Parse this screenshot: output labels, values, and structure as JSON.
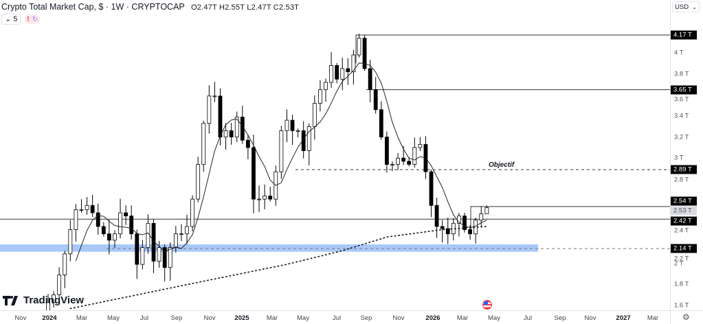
{
  "header": {
    "title": "Crypto Total Market Cap, $ · 1W · CRYPTOCAP",
    "ohlc": "O2.47T H2.55T L2.47T C2.53T",
    "indicator_count": "5",
    "collapse_chevron": "⌄",
    "warning": "!",
    "sync": "↻"
  },
  "currency": {
    "label": "USD",
    "chevron": "⌄"
  },
  "annotations": {
    "objectif": "Objectif"
  },
  "branding": {
    "logo_text": "TradingView"
  },
  "colors": {
    "zone": "#a9c8f8",
    "up": "#ffffff",
    "down": "#000000",
    "tag_bg": "#000000"
  },
  "chart_data": {
    "type": "candlestick",
    "symbol": "CRYPTOCAP:TOTAL",
    "interval": "1W",
    "closes": [
      1.63,
      1.7,
      1.89,
      2.09,
      2.32,
      2.51,
      2.51,
      2.55,
      2.48,
      2.35,
      2.28,
      2.22,
      2.28,
      2.48,
      2.45,
      2.28,
      1.99,
      2.15,
      2.38,
      2.02,
      2.15,
      1.96,
      2.15,
      2.28,
      2.28,
      2.35,
      2.61,
      2.94,
      3.33,
      3.59,
      3.59,
      3.2,
      3.26,
      3.2,
      3.39,
      3.17,
      3.1,
      2.61,
      2.61,
      2.64,
      2.61,
      2.87,
      3.26,
      3.36,
      3.26,
      3.26,
      3.07,
      3.3,
      3.52,
      3.65,
      3.72,
      3.88,
      3.75,
      3.85,
      3.82,
      3.98,
      4.14,
      3.85,
      3.65,
      3.46,
      3.2,
      2.94,
      2.94,
      3.0,
      2.97,
      2.94,
      3.1,
      3.13,
      2.87,
      2.55,
      2.35,
      2.33,
      2.28,
      2.38,
      2.45,
      2.32,
      2.28,
      2.41,
      2.47,
      2.53
    ],
    "first_open": 1.55,
    "last_candle": {
      "open": 2.47,
      "high": 2.55,
      "low": 2.47,
      "close": 2.53
    },
    "long_ma": [
      [
        4,
        1.57
      ],
      [
        28,
        1.83
      ],
      [
        43,
        1.99
      ],
      [
        53,
        2.12
      ],
      [
        61,
        2.25
      ],
      [
        71,
        2.32
      ],
      [
        79,
        2.35
      ]
    ],
    "yaxis": {
      "unit": "T",
      "ticks": [
        "4 T",
        "3.8 T",
        "3.6 T",
        "3.4 T",
        "3.2 T",
        "3 T",
        "2.8 T",
        "2.4 T",
        "2.2 T",
        "2 T",
        "1.8 T",
        "1.6 T"
      ],
      "tick_values": [
        4,
        3.8,
        3.6,
        3.4,
        3.2,
        3,
        2.8,
        2.4,
        2.2,
        2,
        1.8,
        1.6
      ],
      "range": [
        1.55,
        4.3
      ]
    },
    "price_tags": [
      {
        "label": "4.17 T",
        "value": 4.17
      },
      {
        "label": "3.65 T",
        "value": 3.65
      },
      {
        "label": "2.89 T",
        "value": 2.89
      },
      {
        "label": "2.54 T",
        "value": 2.54
      },
      {
        "label": "2.53 T",
        "value": 2.53,
        "current": true
      },
      {
        "label": "2.42 T",
        "value": 2.42
      },
      {
        "label": "2.14 T",
        "value": 2.14
      }
    ],
    "levels": {
      "high": 4.17,
      "resistance": 3.65,
      "objectif": 2.89,
      "recent_high": 2.54,
      "pivot": 2.42,
      "support": 2.14,
      "zone": [
        2.11,
        2.18
      ]
    },
    "xaxis": {
      "ticks": [
        "Nov",
        "2024",
        "Mar",
        "May",
        "Jul",
        "Sep",
        "Nov",
        "2025",
        "Mar",
        "May",
        "Jul",
        "Sep",
        "Nov",
        "2026",
        "Mar",
        "May",
        "Jul",
        "Sep",
        "Nov",
        "2027",
        "Mar"
      ],
      "bold": [
        "2024",
        "2025",
        "2026",
        "2027"
      ]
    }
  }
}
